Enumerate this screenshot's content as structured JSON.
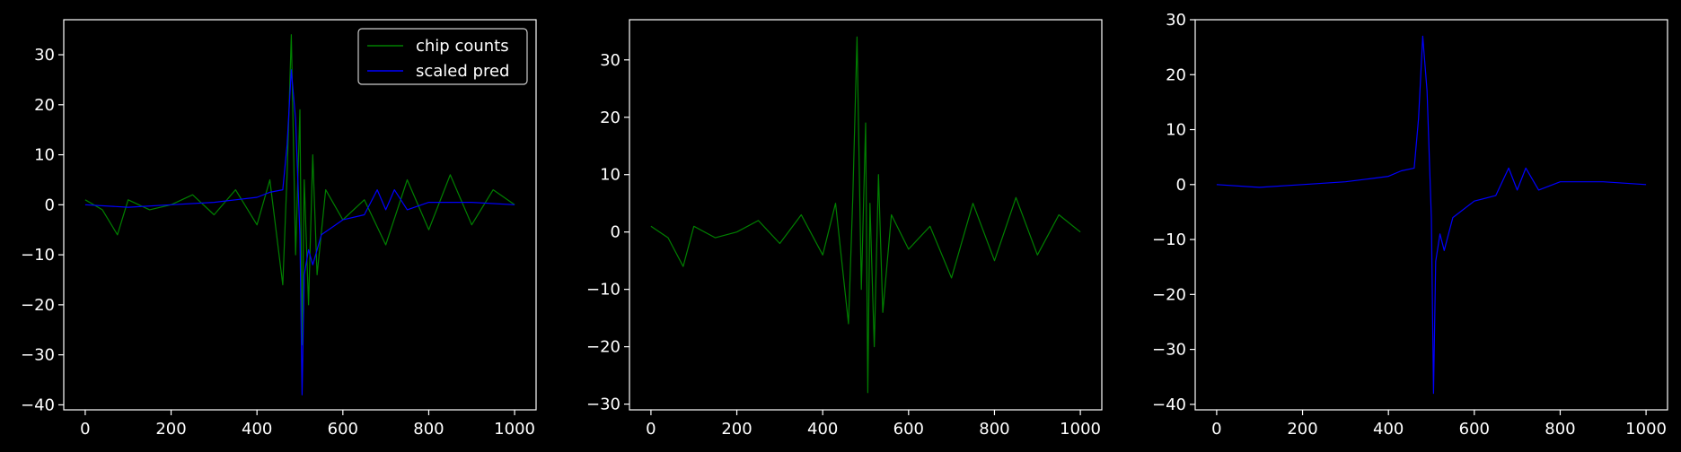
{
  "colors": {
    "background": "#000000",
    "axes": "#ffffff",
    "chip_counts": "#008000",
    "scaled_pred": "#0000ff",
    "legend_border": "#cccccc"
  },
  "chart_data": [
    {
      "type": "line",
      "xlim": [
        -50,
        1050
      ],
      "ylim": [
        -41,
        37
      ],
      "xticks": [
        0,
        200,
        400,
        600,
        800,
        1000
      ],
      "yticks": [
        -40,
        -30,
        -20,
        -10,
        0,
        10,
        20,
        30
      ],
      "legend": {
        "placement": "top-right",
        "entries": [
          "chip counts",
          "scaled pred"
        ]
      },
      "series": [
        {
          "name": "chip counts",
          "color": "#008000",
          "x": [
            0,
            40,
            75,
            100,
            150,
            200,
            250,
            300,
            350,
            400,
            430,
            460,
            470,
            480,
            490,
            500,
            505,
            510,
            520,
            530,
            540,
            560,
            600,
            650,
            700,
            750,
            800,
            850,
            900,
            950,
            1000
          ],
          "y": [
            1,
            -1,
            -6,
            1,
            -1,
            0,
            2,
            -2,
            3,
            -4,
            5,
            -16,
            6,
            34,
            -10,
            19,
            -28,
            5,
            -20,
            10,
            -14,
            3,
            -3,
            1,
            -8,
            5,
            -5,
            6,
            -4,
            3,
            0
          ]
        },
        {
          "name": "scaled pred",
          "color": "#0000ff",
          "x": [
            0,
            100,
            200,
            300,
            350,
            400,
            430,
            460,
            470,
            480,
            490,
            500,
            505,
            510,
            520,
            530,
            550,
            600,
            650,
            680,
            700,
            720,
            750,
            800,
            900,
            1000
          ],
          "y": [
            0,
            -0.5,
            0,
            0.5,
            1,
            1.5,
            2.5,
            3,
            12,
            27,
            17,
            -6,
            -38,
            -14,
            -9,
            -12,
            -6,
            -3,
            -2,
            3,
            -1,
            3,
            -1,
            0.5,
            0.5,
            0
          ]
        }
      ]
    },
    {
      "type": "line",
      "xlim": [
        -50,
        1050
      ],
      "ylim": [
        -31,
        37
      ],
      "xticks": [
        0,
        200,
        400,
        600,
        800,
        1000
      ],
      "yticks": [
        -30,
        -20,
        -10,
        0,
        10,
        20,
        30
      ],
      "series": [
        {
          "color": "#008000",
          "x": [
            0,
            40,
            75,
            100,
            150,
            200,
            250,
            300,
            350,
            400,
            430,
            460,
            470,
            480,
            490,
            500,
            505,
            510,
            520,
            530,
            540,
            560,
            600,
            650,
            700,
            750,
            800,
            850,
            900,
            950,
            1000
          ],
          "y": [
            1,
            -1,
            -6,
            1,
            -1,
            0,
            2,
            -2,
            3,
            -4,
            5,
            -16,
            6,
            34,
            -10,
            19,
            -28,
            5,
            -20,
            10,
            -14,
            3,
            -3,
            1,
            -8,
            5,
            -5,
            6,
            -4,
            3,
            0
          ]
        }
      ]
    },
    {
      "type": "line",
      "xlim": [
        -50,
        1050
      ],
      "ylim": [
        -41,
        30
      ],
      "xticks": [
        0,
        200,
        400,
        600,
        800,
        1000
      ],
      "yticks": [
        -40,
        -30,
        -20,
        -10,
        0,
        10,
        20,
        30
      ],
      "series": [
        {
          "color": "#0000ff",
          "x": [
            0,
            100,
            200,
            300,
            350,
            400,
            430,
            460,
            470,
            480,
            490,
            500,
            505,
            510,
            520,
            530,
            550,
            600,
            650,
            680,
            700,
            720,
            750,
            800,
            900,
            1000
          ],
          "y": [
            0,
            -0.5,
            0,
            0.5,
            1,
            1.5,
            2.5,
            3,
            12,
            27,
            17,
            -6,
            -38,
            -14,
            -9,
            -12,
            -6,
            -3,
            -2,
            3,
            -1,
            3,
            -1,
            0.5,
            0.5,
            0
          ]
        }
      ]
    }
  ]
}
